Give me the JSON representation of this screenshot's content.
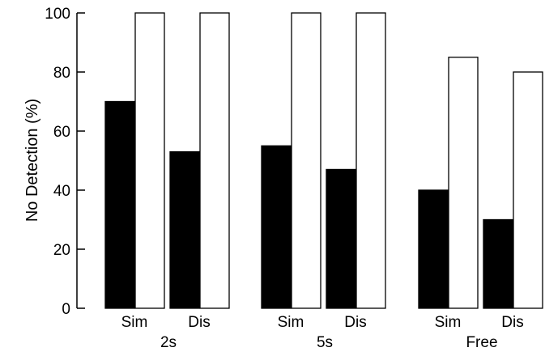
{
  "chart_data": {
    "type": "bar",
    "ylabel": "No Detection (%)",
    "ylim": [
      0,
      100
    ],
    "yticks": [
      0,
      20,
      40,
      60,
      80,
      100
    ],
    "groups": [
      {
        "label": "2s",
        "conditions": [
          "Sim",
          "Dis"
        ]
      },
      {
        "label": "5s",
        "conditions": [
          "Sim",
          "Dis"
        ]
      },
      {
        "label": "Free",
        "conditions": [
          "Sim",
          "Dis"
        ]
      }
    ],
    "categories": [
      "2s Sim",
      "2s Dis",
      "5s Sim",
      "5s Dis",
      "Free Sim",
      "Free Dis"
    ],
    "series": [
      {
        "color": "#000000",
        "values": [
          70,
          53,
          55,
          47,
          40,
          30
        ]
      },
      {
        "color": "#ffffff",
        "values": [
          100,
          100,
          100,
          100,
          85,
          80
        ]
      }
    ],
    "legend": "none",
    "grid": false
  }
}
